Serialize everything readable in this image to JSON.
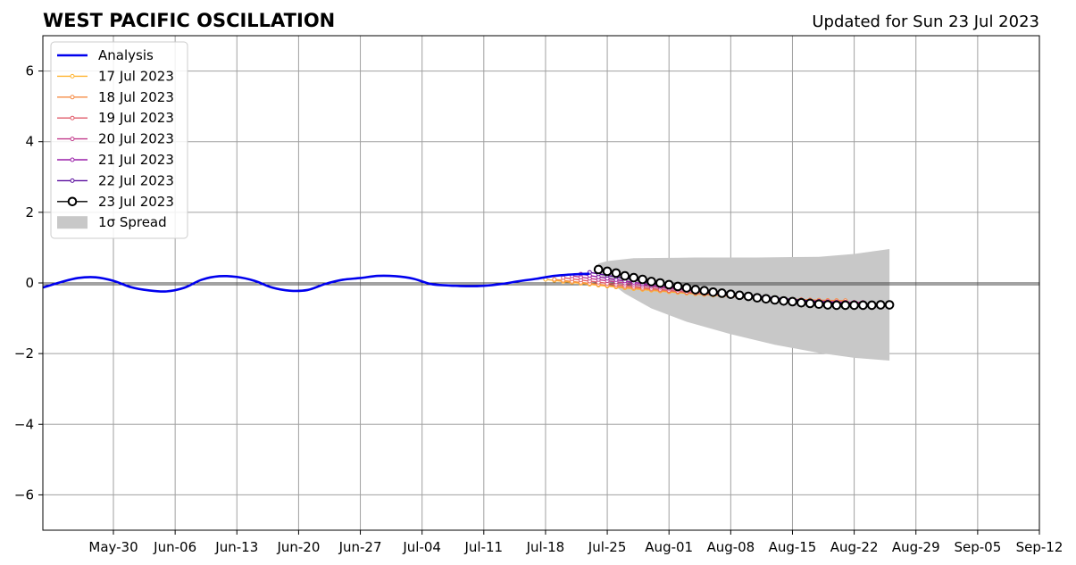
{
  "chart_data": {
    "type": "line",
    "title": "WEST PACIFIC OSCILLATION",
    "subtitle": "Updated for Sun 23 Jul 2023",
    "xlabel": "",
    "ylabel": "",
    "xlim": [
      "2023-05-22",
      "2023-09-12"
    ],
    "ylim": [
      -7,
      7
    ],
    "grid": true,
    "legend_position": "top-left",
    "x_ticks": [
      "May-30",
      "Jun-06",
      "Jun-13",
      "Jun-20",
      "Jun-27",
      "Jul-04",
      "Jul-11",
      "Jul-18",
      "Jul-25",
      "Aug-01",
      "Aug-08",
      "Aug-15",
      "Aug-22",
      "Aug-29",
      "Sep-05",
      "Sep-12"
    ],
    "x_tick_dates": [
      "2023-05-30",
      "2023-06-06",
      "2023-06-13",
      "2023-06-20",
      "2023-06-27",
      "2023-07-04",
      "2023-07-11",
      "2023-07-18",
      "2023-07-25",
      "2023-08-01",
      "2023-08-08",
      "2023-08-15",
      "2023-08-22",
      "2023-08-29",
      "2023-09-05",
      "2023-09-12"
    ],
    "y_ticks": [
      -6,
      -4,
      -2,
      0,
      2,
      4,
      6
    ],
    "y_tick_labels": [
      "−6",
      "−4",
      "−2",
      "0",
      "2",
      "4",
      "6"
    ],
    "analysis": {
      "name": "Analysis",
      "color": "#0000ee",
      "points": [
        [
          "2023-05-22",
          -0.13
        ],
        [
          "2023-05-24",
          0.02
        ],
        [
          "2023-05-26",
          0.14
        ],
        [
          "2023-05-28",
          0.16
        ],
        [
          "2023-05-30",
          0.06
        ],
        [
          "2023-06-01",
          -0.12
        ],
        [
          "2023-06-03",
          -0.21
        ],
        [
          "2023-06-05",
          -0.24
        ],
        [
          "2023-06-07",
          -0.14
        ],
        [
          "2023-06-09",
          0.09
        ],
        [
          "2023-06-11",
          0.19
        ],
        [
          "2023-06-13",
          0.17
        ],
        [
          "2023-06-15",
          0.06
        ],
        [
          "2023-06-17",
          -0.13
        ],
        [
          "2023-06-19",
          -0.22
        ],
        [
          "2023-06-21",
          -0.2
        ],
        [
          "2023-06-23",
          -0.03
        ],
        [
          "2023-06-25",
          0.09
        ],
        [
          "2023-06-27",
          0.14
        ],
        [
          "2023-06-29",
          0.2
        ],
        [
          "2023-07-01",
          0.19
        ],
        [
          "2023-07-03",
          0.12
        ],
        [
          "2023-07-05",
          -0.03
        ],
        [
          "2023-07-07",
          -0.07
        ],
        [
          "2023-07-09",
          -0.09
        ],
        [
          "2023-07-11",
          -0.08
        ],
        [
          "2023-07-13",
          -0.03
        ],
        [
          "2023-07-15",
          0.05
        ],
        [
          "2023-07-17",
          0.12
        ],
        [
          "2023-07-19",
          0.2
        ],
        [
          "2023-07-21",
          0.24
        ],
        [
          "2023-07-23",
          0.26
        ]
      ]
    },
    "forecasts": [
      {
        "name": "17 Jul 2023",
        "color": "#ffb431",
        "start": "2023-07-18",
        "end": "2023-08-20",
        "y_start": 0.1,
        "y_end": -0.5
      },
      {
        "name": "18 Jul 2023",
        "color": "#f68b45",
        "start": "2023-07-19",
        "end": "2023-08-21",
        "y_start": 0.1,
        "y_end": -0.5
      },
      {
        "name": "19 Jul 2023",
        "color": "#e15d6b",
        "start": "2023-07-20",
        "end": "2023-08-22",
        "y_start": 0.15,
        "y_end": -0.55
      },
      {
        "name": "20 Jul 2023",
        "color": "#c23b8c",
        "start": "2023-07-21",
        "end": "2023-08-23",
        "y_start": 0.2,
        "y_end": -0.55
      },
      {
        "name": "21 Jul 2023",
        "color": "#9a1fa8",
        "start": "2023-07-22",
        "end": "2023-08-24",
        "y_start": 0.25,
        "y_end": -0.6
      },
      {
        "name": "22 Jul 2023",
        "color": "#5a0f9e",
        "start": "2023-07-23",
        "end": "2023-08-25",
        "y_start": 0.3,
        "y_end": -0.6
      }
    ],
    "main_forecast": {
      "name": "23 Jul 2023",
      "color": "#000000",
      "marker_face": "#ffffff",
      "points": [
        [
          "2023-07-24",
          0.38
        ],
        [
          "2023-07-25",
          0.33
        ],
        [
          "2023-07-26",
          0.28
        ],
        [
          "2023-07-27",
          0.2
        ],
        [
          "2023-07-28",
          0.15
        ],
        [
          "2023-07-29",
          0.1
        ],
        [
          "2023-07-30",
          0.04
        ],
        [
          "2023-07-31",
          0.0
        ],
        [
          "2023-08-01",
          -0.05
        ],
        [
          "2023-08-02",
          -0.1
        ],
        [
          "2023-08-03",
          -0.14
        ],
        [
          "2023-08-04",
          -0.19
        ],
        [
          "2023-08-05",
          -0.22
        ],
        [
          "2023-08-06",
          -0.26
        ],
        [
          "2023-08-07",
          -0.29
        ],
        [
          "2023-08-08",
          -0.32
        ],
        [
          "2023-08-09",
          -0.35
        ],
        [
          "2023-08-10",
          -0.38
        ],
        [
          "2023-08-11",
          -0.42
        ],
        [
          "2023-08-12",
          -0.45
        ],
        [
          "2023-08-13",
          -0.48
        ],
        [
          "2023-08-14",
          -0.51
        ],
        [
          "2023-08-15",
          -0.53
        ],
        [
          "2023-08-16",
          -0.56
        ],
        [
          "2023-08-17",
          -0.58
        ],
        [
          "2023-08-18",
          -0.6
        ],
        [
          "2023-08-19",
          -0.62
        ],
        [
          "2023-08-20",
          -0.63
        ],
        [
          "2023-08-21",
          -0.63
        ],
        [
          "2023-08-22",
          -0.63
        ],
        [
          "2023-08-23",
          -0.63
        ],
        [
          "2023-08-24",
          -0.63
        ],
        [
          "2023-08-25",
          -0.62
        ],
        [
          "2023-08-26",
          -0.62
        ]
      ]
    },
    "spread": {
      "name": "1σ Spread",
      "color": "#c8c8c8",
      "upper": [
        [
          "2023-07-24",
          0.55
        ],
        [
          "2023-07-25",
          0.62
        ],
        [
          "2023-07-28",
          0.7
        ],
        [
          "2023-08-04",
          0.72
        ],
        [
          "2023-08-11",
          0.72
        ],
        [
          "2023-08-18",
          0.74
        ],
        [
          "2023-08-22",
          0.82
        ],
        [
          "2023-08-26",
          0.96
        ]
      ],
      "lower": [
        [
          "2023-07-24",
          0.25
        ],
        [
          "2023-07-27",
          -0.3
        ],
        [
          "2023-07-30",
          -0.72
        ],
        [
          "2023-08-03",
          -1.1
        ],
        [
          "2023-08-08",
          -1.45
        ],
        [
          "2023-08-13",
          -1.75
        ],
        [
          "2023-08-18",
          -1.98
        ],
        [
          "2023-08-22",
          -2.12
        ],
        [
          "2023-08-26",
          -2.2
        ]
      ]
    }
  }
}
